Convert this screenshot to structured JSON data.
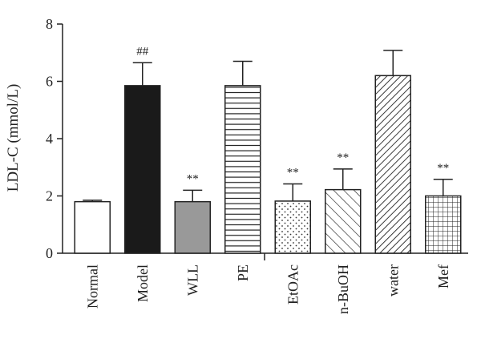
{
  "chart_data": {
    "type": "bar",
    "ylabel": "LDL-C (mmol/L)",
    "xlabel": "",
    "ylim": [
      0,
      8
    ],
    "yticks": [
      0,
      2,
      4,
      6,
      8
    ],
    "grid": false,
    "categories": [
      "Normal",
      "Model",
      "WLL",
      "PE",
      "EtOAc",
      "n-BuOH",
      "water",
      "Mef"
    ],
    "values": [
      1.8,
      5.85,
      1.8,
      5.85,
      1.82,
      2.22,
      6.2,
      2.0
    ],
    "errors": [
      0.05,
      0.8,
      0.4,
      0.85,
      0.6,
      0.72,
      0.88,
      0.58
    ],
    "annotations": [
      "",
      "##",
      "**",
      "",
      "**",
      "**",
      "",
      "**"
    ],
    "fill_styles": [
      "white",
      "black",
      "gray",
      "horizontal-lines",
      "dots",
      "diagonal-lines",
      "diagonal-lines-dense",
      "grid"
    ],
    "colors": {
      "axis": "#222222",
      "model": "#1a1a1a",
      "wll": "#999999"
    }
  }
}
